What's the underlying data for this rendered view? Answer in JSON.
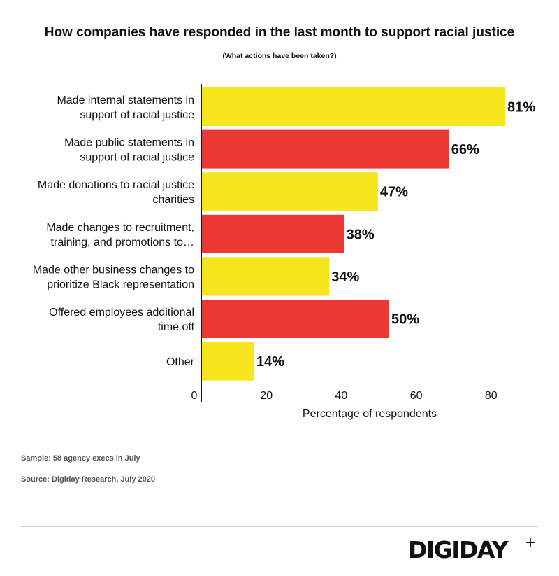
{
  "chart_data": {
    "type": "bar",
    "orientation": "horizontal",
    "title": "How companies have responded in the last month to support racial justice",
    "subtitle": "(What actions have been taken?)",
    "categories": [
      [
        "Made internal statements in",
        "support of racial justice"
      ],
      [
        "Made public statements in",
        "support of racial justice"
      ],
      [
        "Made donations to racial justice",
        "charities"
      ],
      [
        "Made changes to recruitment,",
        "training, and promotions to…"
      ],
      [
        "Made other business changes to",
        "prioritize Black representation"
      ],
      [
        "Offered employees additional",
        "time off"
      ],
      [
        "Other"
      ]
    ],
    "values": [
      81,
      66,
      47,
      38,
      34,
      50,
      14
    ],
    "data_labels": [
      "81%",
      "66%",
      "47%",
      "38%",
      "34%",
      "50%",
      "14%"
    ],
    "colors": [
      "#F7E51E",
      "#EB3833",
      "#F7E51E",
      "#EB3833",
      "#F7E51E",
      "#EB3833",
      "#F7E51E"
    ],
    "xlabel": "Percentage of respondents",
    "xticks": [
      0,
      20,
      40,
      60,
      80
    ],
    "xlim": [
      0,
      95
    ],
    "grid": false
  },
  "notes": {
    "sample": "Sample: 58 agency execs in July",
    "source": "Source: Digiday Research, July 2020"
  },
  "logo": {
    "text": "DIGIDAY",
    "plus": "+"
  }
}
